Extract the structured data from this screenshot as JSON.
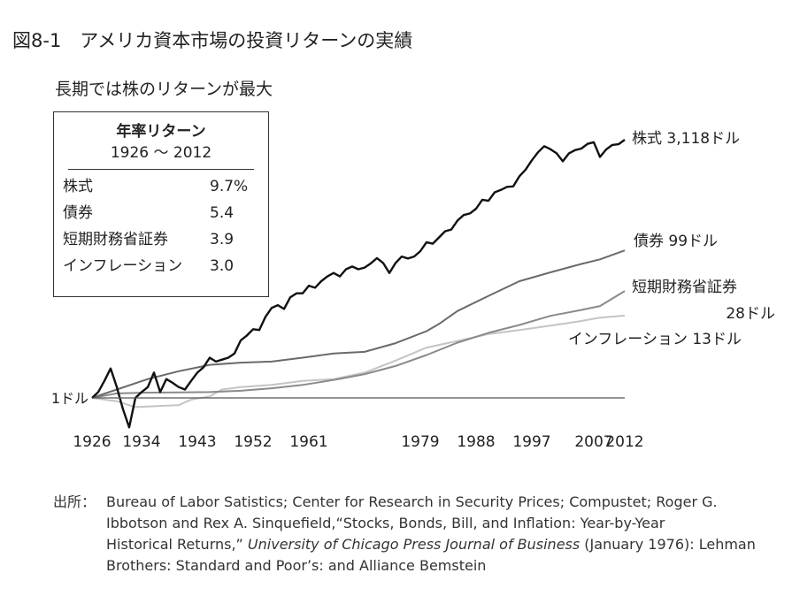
{
  "header": {
    "title": "図8-1　アメリカ資本市場の投資リターンの実績",
    "subtitle": "長期では株のリターンが最大"
  },
  "legend": {
    "heading_line1": "年率リターン",
    "heading_line2": "1926 〜 2012",
    "rows": [
      {
        "label": "株式",
        "value": "9.7%"
      },
      {
        "label": "債券",
        "value": "5.4"
      },
      {
        "label": "短期財務省証券",
        "value": "3.9"
      },
      {
        "label": "インフレーション",
        "value": "3.0"
      }
    ]
  },
  "chart_data": {
    "type": "line",
    "title": "アメリカ資本市場の投資リターンの実績",
    "subtitle": "長期では株のリターンが最大",
    "xlabel": "",
    "ylabel": "",
    "y_scale": "log",
    "ylim": [
      0.3,
      9000
    ],
    "xlim": [
      1926,
      2013
    ],
    "x_ticks": [
      1926,
      1934,
      1943,
      1952,
      1961,
      1979,
      1988,
      1997,
      2007,
      2012
    ],
    "baseline_label": "1ドル",
    "baseline_value": 1,
    "grid": false,
    "series": [
      {
        "name": "株式",
        "end_label": "株式 3,118ドル",
        "color": "#111111",
        "x": [
          1926,
          1927,
          1928,
          1929,
          1930,
          1931,
          1932,
          1933,
          1934,
          1935,
          1936,
          1937,
          1938,
          1939,
          1940,
          1941,
          1942,
          1943,
          1944,
          1945,
          1946,
          1947,
          1948,
          1949,
          1950,
          1951,
          1952,
          1953,
          1954,
          1955,
          1956,
          1957,
          1958,
          1959,
          1960,
          1961,
          1962,
          1963,
          1964,
          1965,
          1966,
          1967,
          1968,
          1969,
          1970,
          1971,
          1972,
          1973,
          1974,
          1975,
          1976,
          1977,
          1978,
          1979,
          1980,
          1981,
          1982,
          1983,
          1984,
          1985,
          1986,
          1987,
          1988,
          1989,
          1990,
          1991,
          1992,
          1993,
          1994,
          1995,
          1996,
          1997,
          1998,
          1999,
          2000,
          2001,
          2002,
          2003,
          2004,
          2005,
          2006,
          2007,
          2008,
          2009,
          2010,
          2011,
          2012
        ],
        "values": [
          1,
          1.2,
          1.7,
          2.5,
          1.4,
          0.7,
          0.4,
          1.0,
          1.2,
          1.4,
          2.2,
          1.2,
          1.8,
          1.6,
          1.4,
          1.3,
          1.7,
          2.2,
          2.6,
          3.5,
          3.1,
          3.3,
          3.5,
          4.0,
          6.0,
          7.0,
          8.5,
          8.3,
          12.5,
          16.5,
          18,
          16,
          23,
          26,
          26,
          33,
          31,
          38,
          44,
          49,
          44,
          55,
          60,
          55,
          58,
          66,
          78,
          67,
          49,
          67,
          82,
          77,
          82,
          97,
          128,
          122,
          148,
          180,
          190,
          251,
          298,
          313,
          364,
          480,
          465,
          606,
          652,
          718,
          727,
          1000,
          1230,
          1640,
          2110,
          2550,
          2320,
          2040,
          1590,
          2040,
          2260,
          2370,
          2740,
          2890,
          1820,
          2300,
          2650,
          2710,
          3118
        ]
      },
      {
        "name": "債券",
        "end_label": "債券 99ドル",
        "color": "#6a6a6a",
        "x": [
          1926,
          1930,
          1935,
          1940,
          1945,
          1950,
          1955,
          1960,
          1965,
          1970,
          1975,
          1980,
          1982,
          1985,
          1990,
          1995,
          2000,
          2005,
          2008,
          2012
        ],
        "values": [
          1,
          1.3,
          1.8,
          2.3,
          2.8,
          3.0,
          3.1,
          3.5,
          4.0,
          4.2,
          5.5,
          8,
          10,
          15,
          24,
          38,
          50,
          65,
          75,
          99
        ]
      },
      {
        "name": "短期財務省証券",
        "end_label": "短期財務省証券",
        "end_value_label": "28ドル",
        "color": "#8a8a8a",
        "x": [
          1926,
          1930,
          1935,
          1940,
          1945,
          1950,
          1955,
          1960,
          1965,
          1970,
          1975,
          1980,
          1985,
          1990,
          1995,
          2000,
          2005,
          2008,
          2012
        ],
        "values": [
          1,
          1.15,
          1.18,
          1.19,
          1.2,
          1.25,
          1.35,
          1.5,
          1.75,
          2.1,
          2.7,
          3.8,
          5.6,
          7.6,
          9.7,
          12.9,
          15.5,
          17.5,
          28
        ]
      },
      {
        "name": "インフレーション",
        "end_label": "インフレーション 13ドル",
        "color": "#c4c4c4",
        "x": [
          1926,
          1930,
          1933,
          1940,
          1942,
          1945,
          1947,
          1950,
          1955,
          1960,
          1965,
          1970,
          1975,
          1980,
          1985,
          1990,
          1995,
          2000,
          2005,
          2008,
          2012
        ],
        "values": [
          1,
          0.9,
          0.75,
          0.8,
          0.95,
          1.05,
          1.3,
          1.4,
          1.5,
          1.7,
          1.8,
          2.2,
          3.2,
          4.8,
          5.9,
          7.3,
          8.3,
          9.5,
          11,
          12.2,
          13
        ]
      }
    ]
  },
  "source": {
    "label": "出所：",
    "line1": "Bureau of Labor Satistics; Center for Research in Security Prices; Compustet; Roger G.",
    "line2": "Ibbotson and Rex A. Sinquefield,“Stocks, Bonds, Bill, and Inflation: Year-by-Year",
    "line3a": "Historical Returns,” ",
    "line3b": "University of Chicago Press Journal of Business",
    "line3c": " (January 1976): Lehman",
    "line4": "Brothers: Standard and Poor’s: and Alliance Bemstein"
  }
}
